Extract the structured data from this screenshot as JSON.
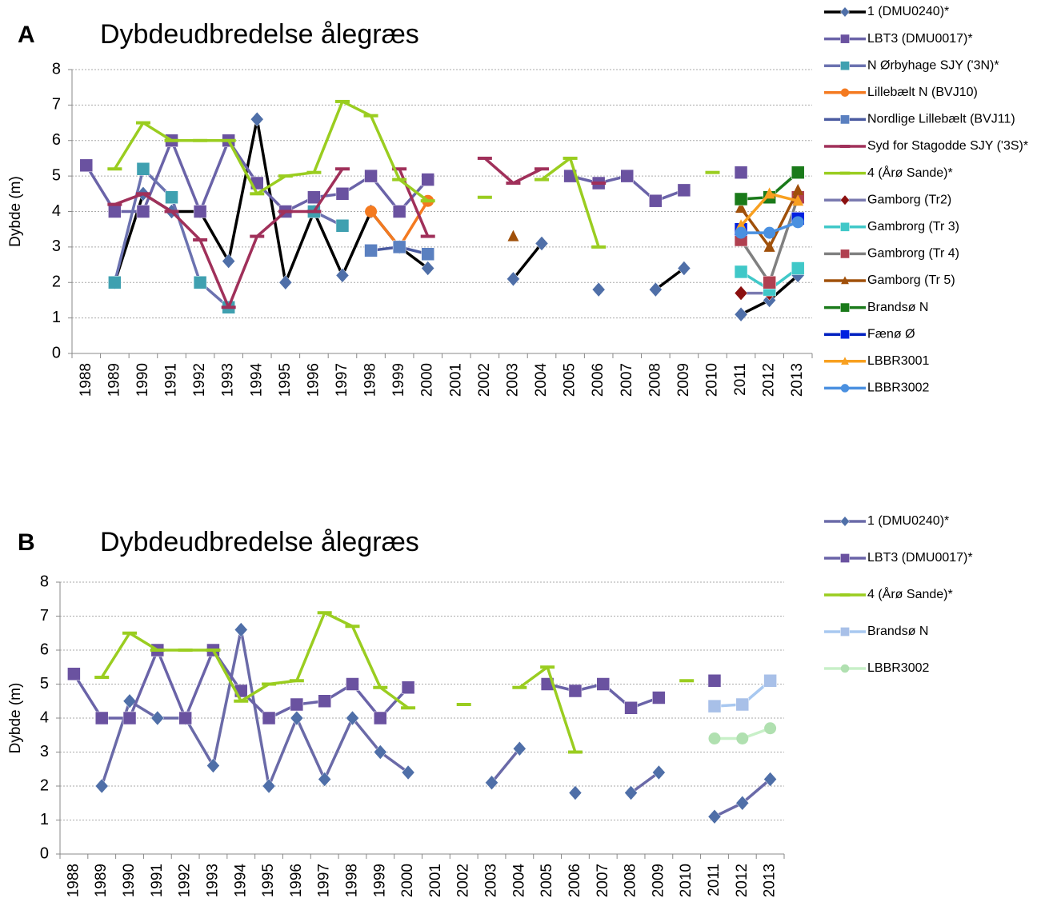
{
  "chart_data": [
    {
      "type": "line",
      "label": "A",
      "title": "Dybdeudbredelse ålegræs",
      "y_label": "Dybde (m)",
      "categories": [
        "1988",
        "1989",
        "1990",
        "1991",
        "1992",
        "1993",
        "1994",
        "1995",
        "1996",
        "1997",
        "1998",
        "1999",
        "2000",
        "2001",
        "2002",
        "2003",
        "2004",
        "2005",
        "2006",
        "2007",
        "2008",
        "2009",
        "2010",
        "2011",
        "2012",
        "2013"
      ],
      "ylim": [
        0,
        8
      ],
      "yticks": [
        0,
        1,
        2,
        3,
        4,
        5,
        6,
        7,
        8
      ],
      "grid": true,
      "legend": "right",
      "series": [
        {
          "name": "1 (DMU0240)*",
          "color": "#000000",
          "marker": "diamond",
          "marker_color": "#4f6fa8",
          "values": [
            null,
            2.0,
            4.5,
            4.0,
            4.0,
            2.6,
            6.6,
            2.0,
            4.0,
            2.2,
            4.0,
            3.0,
            2.4,
            null,
            null,
            2.1,
            3.1,
            null,
            1.8,
            null,
            1.8,
            2.4,
            null,
            1.1,
            1.5,
            2.2
          ]
        },
        {
          "name": "LBT3 (DMU0017)*",
          "color": "#6a63a8",
          "marker": "square",
          "marker_color": "#6a52a0",
          "values": [
            5.3,
            4.0,
            4.0,
            6.0,
            4.0,
            6.0,
            4.8,
            4.0,
            4.4,
            4.5,
            5.0,
            4.0,
            4.9,
            null,
            null,
            null,
            null,
            5.0,
            4.8,
            5.0,
            4.3,
            4.6,
            null,
            5.1,
            null,
            null
          ]
        },
        {
          "name": "N Ørbyhage SJY ('3N)*",
          "color": "#6b72b0",
          "marker": "square",
          "marker_color": "#3fa0b0",
          "values": [
            null,
            2.0,
            5.2,
            4.4,
            2.0,
            1.3,
            null,
            null,
            4.0,
            3.6,
            null,
            null,
            null,
            null,
            null,
            null,
            null,
            null,
            null,
            null,
            null,
            null,
            null,
            null,
            null,
            null
          ]
        },
        {
          "name": " Lillebælt N (BVJ10)",
          "color": "#f47a20",
          "marker": "circle",
          "marker_color": "#f47a20",
          "values": [
            null,
            null,
            null,
            null,
            null,
            null,
            null,
            null,
            null,
            null,
            4.0,
            3.0,
            4.3,
            null,
            null,
            null,
            null,
            null,
            null,
            null,
            null,
            null,
            null,
            null,
            null,
            null
          ]
        },
        {
          "name": "Nordlige Lillebælt (BVJ11)",
          "color": "#4a5aa0",
          "marker": "square",
          "marker_color": "#5a80c0",
          "values": [
            null,
            null,
            null,
            null,
            null,
            null,
            null,
            null,
            null,
            null,
            2.9,
            3.0,
            2.8,
            null,
            null,
            null,
            null,
            null,
            null,
            null,
            null,
            null,
            null,
            null,
            null,
            null
          ]
        },
        {
          "name": "Syd for Stagodde SJY ('3S)*",
          "color": "#a0305a",
          "marker": "dash",
          "marker_color": "#a0305a",
          "values": [
            null,
            4.2,
            4.5,
            4.0,
            3.2,
            1.3,
            3.3,
            4.0,
            4.0,
            5.2,
            null,
            5.2,
            3.3,
            null,
            5.5,
            4.8,
            5.2,
            null,
            4.8,
            null,
            null,
            null,
            null,
            null,
            null,
            null
          ]
        },
        {
          "name": "4 (Årø Sande)*",
          "color": "#9acd20",
          "marker": "dash",
          "marker_color": "#9acd20",
          "values": [
            null,
            5.2,
            6.5,
            6.0,
            6.0,
            6.0,
            4.5,
            5.0,
            5.1,
            7.1,
            6.7,
            4.9,
            4.3,
            null,
            4.4,
            null,
            4.9,
            5.5,
            3.0,
            null,
            null,
            null,
            5.1,
            null,
            null,
            null
          ]
        },
        {
          "name": "Gamborg (Tr2)",
          "color": "#7a7ab0",
          "marker": "diamond",
          "marker_color": "#8b1010",
          "values": [
            null,
            null,
            null,
            null,
            null,
            null,
            null,
            null,
            null,
            null,
            null,
            null,
            null,
            null,
            null,
            null,
            null,
            null,
            null,
            null,
            null,
            null,
            null,
            1.7,
            1.7,
            null
          ]
        },
        {
          "name": "Gambrorg (Tr 3)",
          "color": "#40c8c8",
          "marker": "square",
          "marker_color": "#40c8c8",
          "values": [
            null,
            null,
            null,
            null,
            null,
            null,
            null,
            null,
            null,
            null,
            null,
            null,
            null,
            null,
            null,
            null,
            null,
            null,
            null,
            null,
            null,
            null,
            null,
            2.3,
            1.8,
            2.4
          ]
        },
        {
          "name": "Gambrorg (Tr 4)",
          "color": "#808080",
          "marker": "square",
          "marker_color": "#b04050",
          "values": [
            null,
            null,
            null,
            null,
            null,
            null,
            null,
            null,
            null,
            null,
            null,
            null,
            null,
            null,
            null,
            null,
            null,
            null,
            null,
            null,
            null,
            null,
            null,
            3.2,
            2.0,
            4.4
          ]
        },
        {
          "name": "Gamborg (Tr 5)",
          "color": "#a0500a",
          "marker": "triangle",
          "marker_color": "#a0500a",
          "values": [
            null,
            null,
            null,
            null,
            null,
            null,
            null,
            null,
            null,
            null,
            null,
            null,
            null,
            null,
            null,
            3.3,
            null,
            null,
            null,
            null,
            null,
            null,
            null,
            4.1,
            3.0,
            4.6
          ]
        },
        {
          "name": "Brandsø N",
          "color": "#1a7a1a",
          "marker": "square",
          "marker_color": "#1a7a1a",
          "values": [
            null,
            null,
            null,
            null,
            null,
            null,
            null,
            null,
            null,
            null,
            null,
            null,
            null,
            null,
            null,
            null,
            null,
            null,
            null,
            null,
            null,
            null,
            null,
            4.35,
            4.4,
            5.1
          ]
        },
        {
          "name": "Fænø Ø",
          "color": "#0020c0",
          "marker": "square",
          "marker_color": "#0020e0",
          "values": [
            null,
            null,
            null,
            null,
            null,
            null,
            null,
            null,
            null,
            null,
            null,
            null,
            null,
            null,
            null,
            null,
            null,
            null,
            null,
            null,
            null,
            null,
            null,
            3.5,
            null,
            3.8
          ]
        },
        {
          "name": "LBBR3001",
          "color": "#f8a020",
          "marker": "triangle",
          "marker_color": "#f8a020",
          "values": [
            null,
            null,
            null,
            null,
            null,
            null,
            null,
            null,
            null,
            null,
            null,
            null,
            null,
            null,
            null,
            null,
            null,
            null,
            null,
            null,
            null,
            null,
            null,
            3.6,
            4.5,
            4.3
          ]
        },
        {
          "name": "LBBR3002",
          "color": "#4a90e0",
          "marker": "circle",
          "marker_color": "#4a90e0",
          "values": [
            null,
            null,
            null,
            null,
            null,
            null,
            null,
            null,
            null,
            null,
            null,
            null,
            null,
            null,
            null,
            null,
            null,
            null,
            null,
            null,
            null,
            null,
            null,
            3.4,
            3.4,
            3.7
          ]
        }
      ]
    },
    {
      "type": "line",
      "label": "B",
      "title": "Dybdeudbredelse ålegræs",
      "y_label": "Dybde (m)",
      "categories": [
        "1988",
        "1989",
        "1990",
        "1991",
        "1992",
        "1993",
        "1994",
        "1995",
        "1996",
        "1997",
        "1998",
        "1999",
        "2000",
        "2001",
        "2002",
        "2003",
        "2004",
        "2005",
        "2006",
        "2007",
        "2008",
        "2009",
        "2010",
        "2011",
        "2012",
        "2013"
      ],
      "ylim": [
        0,
        8
      ],
      "yticks": [
        0,
        1,
        2,
        3,
        4,
        5,
        6,
        7,
        8
      ],
      "grid": true,
      "legend": "right",
      "series": [
        {
          "name": "1 (DMU0240)*",
          "color": "#6a6aa8",
          "marker": "diamond",
          "marker_color": "#4f6fa8",
          "values": [
            null,
            2.0,
            4.5,
            4.0,
            4.0,
            2.6,
            6.6,
            2.0,
            4.0,
            2.2,
            4.0,
            3.0,
            2.4,
            null,
            null,
            2.1,
            3.1,
            null,
            1.8,
            null,
            1.8,
            2.4,
            null,
            1.1,
            1.5,
            2.2
          ]
        },
        {
          "name": "LBT3 (DMU0017)*",
          "color": "#6a63a8",
          "marker": "square",
          "marker_color": "#6a52a0",
          "values": [
            5.3,
            4.0,
            4.0,
            6.0,
            4.0,
            6.0,
            4.8,
            4.0,
            4.4,
            4.5,
            5.0,
            4.0,
            4.9,
            null,
            null,
            null,
            null,
            5.0,
            4.8,
            5.0,
            4.3,
            4.6,
            null,
            5.1,
            null,
            null
          ]
        },
        {
          "name": "4 (Årø Sande)*",
          "color": "#9acd20",
          "marker": "dash",
          "marker_color": "#9acd20",
          "values": [
            null,
            5.2,
            6.5,
            6.0,
            6.0,
            6.0,
            4.5,
            5.0,
            5.1,
            7.1,
            6.7,
            4.9,
            4.3,
            null,
            4.4,
            null,
            4.9,
            5.5,
            3.0,
            null,
            null,
            null,
            5.1,
            null,
            null,
            null
          ]
        },
        {
          "name": "Brandsø N",
          "color": "#a8c8f0",
          "marker": "square",
          "marker_color": "#a8c0e8",
          "values": [
            null,
            null,
            null,
            null,
            null,
            null,
            null,
            null,
            null,
            null,
            null,
            null,
            null,
            null,
            null,
            null,
            null,
            null,
            null,
            null,
            null,
            null,
            null,
            4.35,
            4.4,
            5.1
          ]
        },
        {
          "name": "LBBR3002",
          "color": "#c8f0c8",
          "marker": "circle",
          "marker_color": "#b0e0b0",
          "values": [
            null,
            null,
            null,
            null,
            null,
            null,
            null,
            null,
            null,
            null,
            null,
            null,
            null,
            null,
            null,
            null,
            null,
            null,
            null,
            null,
            null,
            null,
            null,
            3.4,
            3.4,
            3.7
          ]
        }
      ]
    }
  ]
}
